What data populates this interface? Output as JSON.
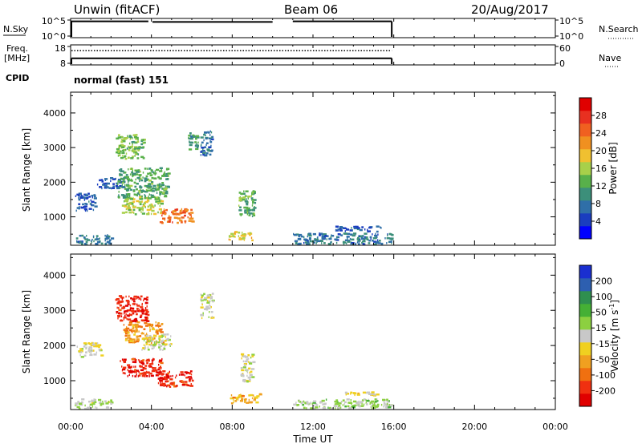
{
  "header": {
    "station": "Unwin (fitACF)",
    "beam": "Beam 06",
    "date": "20/Aug/2017"
  },
  "strips": {
    "nsky": {
      "label": "N.Sky",
      "ticks_left": [
        "10^5",
        "10^0"
      ],
      "ticks_right": [
        "10^5",
        "10^0"
      ],
      "right_label": "N.Search",
      "segments": [
        [
          0,
          3.85,
          4.6
        ],
        [
          4.05,
          10.0,
          4.4
        ],
        [
          11.0,
          15.9,
          4.6
        ]
      ]
    },
    "freq": {
      "label_top": "Freq.",
      "label_bottom": "[MHz]",
      "ticks_left": [
        "18",
        "8"
      ],
      "ticks_right": [
        "60",
        "0"
      ],
      "right_label": "Nave",
      "freq_value": 11,
      "nave_value": 45,
      "end_hour": 15.9
    },
    "cpid": {
      "label": "CPID",
      "value": "normal (fast) 151"
    }
  },
  "xaxis": {
    "label": "Time UT",
    "ticks": [
      "00:00",
      "04:00",
      "08:00",
      "12:00",
      "16:00",
      "20:00",
      "00:00"
    ]
  },
  "colorbars": {
    "power": {
      "label": "Power [dB]",
      "ticks": [
        "28",
        "24",
        "20",
        "16",
        "12",
        "8",
        "4"
      ],
      "colors": [
        "#0000ff",
        "#1a3dbf",
        "#2f6fa8",
        "#3c8f7a",
        "#58b04a",
        "#a8d04a",
        "#f0c030",
        "#f09020",
        "#f06020",
        "#e83020",
        "#e00000"
      ]
    },
    "velocity": {
      "label_main": "Velocity [m s",
      "label_sup": "-1",
      "label_end": "]",
      "ticks": [
        "200",
        "100",
        "50",
        "15",
        "-15",
        "-50",
        "-100",
        "-200"
      ],
      "colors": [
        "#1a2fd0",
        "#2d5fb0",
        "#2f8f4f",
        "#45b035",
        "#8cd040",
        "#c8c8c8",
        "#f0d020",
        "#f0a020",
        "#f07010",
        "#f03010",
        "#e00000"
      ]
    }
  },
  "chart_data": [
    {
      "type": "heatmap",
      "title": "",
      "xlabel": "Time UT",
      "ylabel": "Slant Range [km]",
      "xlim": [
        0,
        24
      ],
      "ylim": [
        180,
        4600
      ],
      "yticks": [
        1000,
        2000,
        3000,
        4000
      ],
      "colorbar": "Power [dB]",
      "clim": [
        0,
        32
      ],
      "regions": [
        {
          "t0": 2.2,
          "t1": 3.6,
          "r0": 2700,
          "r1": 3400,
          "value": 14
        },
        {
          "t0": 1.3,
          "t1": 2.6,
          "r0": 1850,
          "r1": 2150,
          "value": 6
        },
        {
          "t0": 2.3,
          "t1": 4.8,
          "r0": 1550,
          "r1": 2450,
          "value": 12
        },
        {
          "t0": 2.5,
          "t1": 4.5,
          "r0": 1100,
          "r1": 1600,
          "value": 16
        },
        {
          "t0": 4.4,
          "t1": 6.0,
          "r0": 850,
          "r1": 1250,
          "value": 24
        },
        {
          "t0": 5.8,
          "t1": 6.3,
          "r0": 2900,
          "r1": 3450,
          "value": 10
        },
        {
          "t0": 8.3,
          "t1": 9.1,
          "r0": 1000,
          "r1": 1800,
          "value": 12
        },
        {
          "t0": 7.8,
          "t1": 9.0,
          "r0": 350,
          "r1": 600,
          "value": 18
        },
        {
          "t0": 0.2,
          "t1": 1.2,
          "r0": 1200,
          "r1": 1700,
          "value": 6
        },
        {
          "t0": 0.2,
          "t1": 2.0,
          "r0": 200,
          "r1": 500,
          "value": 8
        },
        {
          "t0": 11.0,
          "t1": 15.9,
          "r0": 200,
          "r1": 550,
          "value": 8
        },
        {
          "t0": 13.0,
          "t1": 15.4,
          "r0": 600,
          "r1": 750,
          "value": 6
        },
        {
          "t0": 6.4,
          "t1": 7.0,
          "r0": 2800,
          "r1": 3500,
          "value": 8
        }
      ]
    },
    {
      "type": "heatmap",
      "title": "",
      "xlabel": "Time UT",
      "ylabel": "Slant Range [km]",
      "xlim": [
        0,
        24
      ],
      "ylim": [
        180,
        4600
      ],
      "yticks": [
        1000,
        2000,
        3000,
        4000
      ],
      "colorbar": "Velocity [m s-1]",
      "clim": [
        -250,
        250
      ],
      "regions": [
        {
          "t0": 2.2,
          "t1": 3.8,
          "r0": 2700,
          "r1": 3450,
          "value": -200
        },
        {
          "t0": 2.6,
          "t1": 4.5,
          "r0": 2100,
          "r1": 2700,
          "value": -100
        },
        {
          "t0": 2.4,
          "t1": 4.5,
          "r0": 1150,
          "r1": 1650,
          "value": -200
        },
        {
          "t0": 4.3,
          "t1": 6.0,
          "r0": 850,
          "r1": 1300,
          "value": -200
        },
        {
          "t0": 3.5,
          "t1": 5.0,
          "r0": 1900,
          "r1": 2350,
          "value": 0
        },
        {
          "t0": 8.4,
          "t1": 9.0,
          "r0": 1000,
          "r1": 1800,
          "value": 0
        },
        {
          "t0": 7.8,
          "t1": 9.4,
          "r0": 380,
          "r1": 650,
          "value": -75
        },
        {
          "t0": 11.0,
          "t1": 15.9,
          "r0": 200,
          "r1": 500,
          "value": 30
        },
        {
          "t0": 13.5,
          "t1": 15.2,
          "r0": 600,
          "r1": 700,
          "value": -30
        },
        {
          "t0": 0.2,
          "t1": 2.0,
          "r0": 200,
          "r1": 500,
          "value": 20
        },
        {
          "t0": 0.3,
          "t1": 1.5,
          "r0": 1700,
          "r1": 2100,
          "value": -10
        },
        {
          "t0": 6.4,
          "t1": 7.0,
          "r0": 2800,
          "r1": 3500,
          "value": 0
        }
      ]
    }
  ]
}
